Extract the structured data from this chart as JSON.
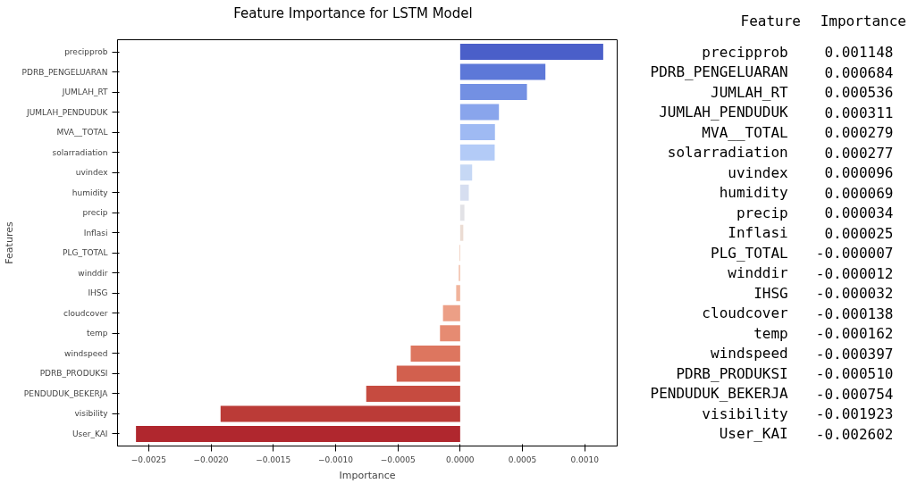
{
  "chart_data": {
    "type": "bar",
    "orientation": "horizontal",
    "title": "Feature Importance for LSTM Model",
    "xlabel": "Importance",
    "ylabel": "Features",
    "categories": [
      "precipprob",
      "PDRB_PENGELUARAN",
      "JUMLAH_RT",
      "JUMLAH_PENDUDUK",
      "MVA__TOTAL",
      "solarradiation",
      "uvindex",
      "humidity",
      "precip",
      "Inflasi",
      "PLG_TOTAL",
      "winddir",
      "IHSG",
      "cloudcover",
      "temp",
      "windspeed",
      "PDRB_PRODUKSI",
      "PENDUDUK_BEKERJA",
      "visibility",
      "User_KAI"
    ],
    "values": [
      0.001148,
      0.000684,
      0.000536,
      0.000311,
      0.000279,
      0.000277,
      9.6e-05,
      6.9e-05,
      3.4e-05,
      2.5e-05,
      -7e-06,
      -1.2e-05,
      -3.2e-05,
      -0.000138,
      -0.000162,
      -0.000397,
      -0.00051,
      -0.000754,
      -0.001923,
      -0.002602
    ],
    "value_labels": [
      "0.001148",
      "0.000684",
      "0.000536",
      "0.000311",
      "0.000279",
      "0.000277",
      "0.000096",
      "0.000069",
      "0.000034",
      "0.000025",
      "-0.000007",
      "-0.000012",
      "-0.000032",
      "-0.000138",
      "-0.000162",
      "-0.000397",
      "-0.000510",
      "-0.000754",
      "-0.001923",
      "-0.002602"
    ],
    "colors": [
      "#4a5fc9",
      "#5d78d8",
      "#7390e3",
      "#89a5ec",
      "#9fbaf3",
      "#b3cbf7",
      "#c6d8f5",
      "#d6def0",
      "#e2e2e6",
      "#ebdcd3",
      "#f1d2c3",
      "#f3c4b0",
      "#f1b49c",
      "#ec9f86",
      "#e68b72",
      "#dd765f",
      "#d2604e",
      "#c64b40",
      "#bb3b37",
      "#b0272e"
    ],
    "xlim": [
      -0.00275,
      0.00126
    ],
    "xticks": [
      {
        "value": -0.0025,
        "label": "−0.0025"
      },
      {
        "value": -0.002,
        "label": "−0.0020"
      },
      {
        "value": -0.0015,
        "label": "−0.0015"
      },
      {
        "value": -0.001,
        "label": "−0.0010"
      },
      {
        "value": -0.0005,
        "label": "−0.0005"
      },
      {
        "value": 0,
        "label": "0.0000"
      },
      {
        "value": 0.0005,
        "label": "0.0005"
      },
      {
        "value": 0.001,
        "label": "0.0010"
      }
    ],
    "annotations": [
      "Feature",
      "Importance"
    ]
  }
}
